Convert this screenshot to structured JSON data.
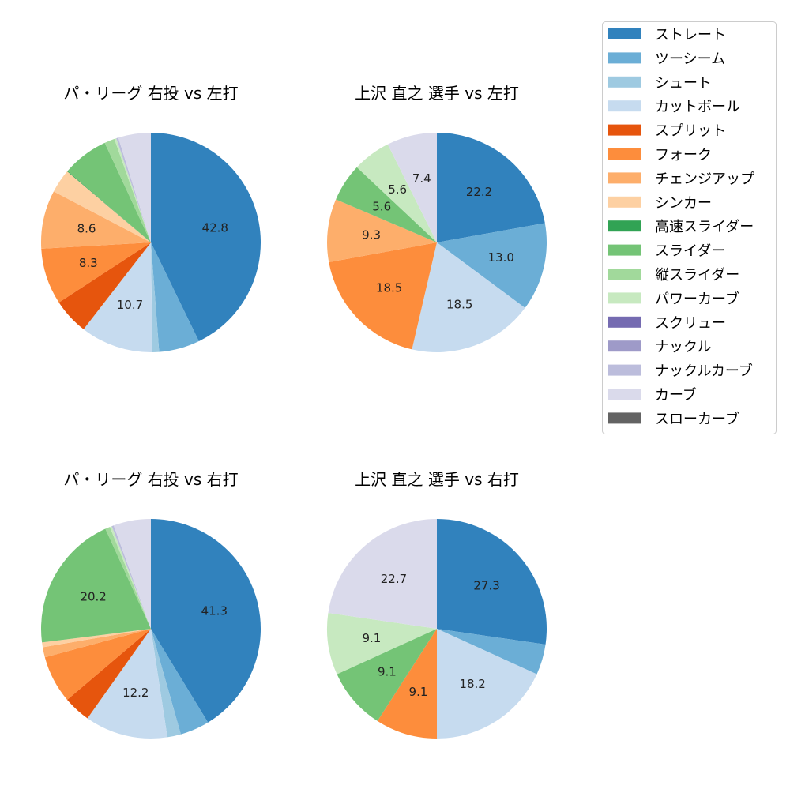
{
  "legend": {
    "placement": "top-right",
    "entries": [
      {
        "name": "ストレート",
        "color": "#3182bd"
      },
      {
        "name": "ツーシーム",
        "color": "#6baed6"
      },
      {
        "name": "シュート",
        "color": "#9ecae1"
      },
      {
        "name": "カットボール",
        "color": "#c6dbef"
      },
      {
        "name": "スプリット",
        "color": "#e6550d"
      },
      {
        "name": "フォーク",
        "color": "#fd8d3c"
      },
      {
        "name": "チェンジアップ",
        "color": "#fdae6b"
      },
      {
        "name": "シンカー",
        "color": "#fdd0a2"
      },
      {
        "name": "高速スライダー",
        "color": "#31a354"
      },
      {
        "name": "スライダー",
        "color": "#74c476"
      },
      {
        "name": "縦スライダー",
        "color": "#a1d99b"
      },
      {
        "name": "パワーカーブ",
        "color": "#c7e9c0"
      },
      {
        "name": "スクリュー",
        "color": "#756bb1"
      },
      {
        "name": "ナックル",
        "color": "#9e9ac8"
      },
      {
        "name": "ナックルカーブ",
        "color": "#bcbddc"
      },
      {
        "name": "カーブ",
        "color": "#dadaeb"
      },
      {
        "name": "スローカーブ",
        "color": "#636363"
      }
    ]
  },
  "chart_data": [
    {
      "type": "pie",
      "title": "パ・リーグ 右投 vs 左打",
      "slices": [
        {
          "name": "ストレート",
          "value": 42.8,
          "label": "42.8"
        },
        {
          "name": "ツーシーム",
          "value": 6.0
        },
        {
          "name": "シュート",
          "value": 1.0
        },
        {
          "name": "カットボール",
          "value": 10.7,
          "label": "10.7"
        },
        {
          "name": "スプリット",
          "value": 5.3
        },
        {
          "name": "フォーク",
          "value": 8.3,
          "label": "8.3"
        },
        {
          "name": "チェンジアップ",
          "value": 8.6,
          "label": "8.6"
        },
        {
          "name": "シンカー",
          "value": 3.5
        },
        {
          "name": "高速スライダー",
          "value": 0.1
        },
        {
          "name": "スライダー",
          "value": 6.8
        },
        {
          "name": "縦スライダー",
          "value": 1.5
        },
        {
          "name": "パワーカーブ",
          "value": 0.3
        },
        {
          "name": "ナックルカーブ",
          "value": 0.3
        },
        {
          "name": "カーブ",
          "value": 4.8
        }
      ]
    },
    {
      "type": "pie",
      "title": "上沢 直之 選手 vs 左打",
      "slices": [
        {
          "name": "ストレート",
          "value": 22.2,
          "label": "22.2"
        },
        {
          "name": "ツーシーム",
          "value": 13.0,
          "label": "13.0"
        },
        {
          "name": "カットボール",
          "value": 18.5,
          "label": "18.5"
        },
        {
          "name": "フォーク",
          "value": 18.5,
          "label": "18.5"
        },
        {
          "name": "チェンジアップ",
          "value": 9.3,
          "label": "9.3"
        },
        {
          "name": "スライダー",
          "value": 5.6,
          "label": "5.6"
        },
        {
          "name": "パワーカーブ",
          "value": 5.6,
          "label": "5.6"
        },
        {
          "name": "カーブ",
          "value": 7.4,
          "label": "7.4"
        }
      ]
    },
    {
      "type": "pie",
      "title": "パ・リーグ 右投 vs 右打",
      "slices": [
        {
          "name": "ストレート",
          "value": 41.3,
          "label": "41.3"
        },
        {
          "name": "ツーシーム",
          "value": 4.3
        },
        {
          "name": "シュート",
          "value": 2.0
        },
        {
          "name": "カットボール",
          "value": 12.2,
          "label": "12.2"
        },
        {
          "name": "スプリット",
          "value": 4.0
        },
        {
          "name": "フォーク",
          "value": 7.0
        },
        {
          "name": "チェンジアップ",
          "value": 1.5
        },
        {
          "name": "シンカー",
          "value": 0.7
        },
        {
          "name": "スライダー",
          "value": 20.2,
          "label": "20.2"
        },
        {
          "name": "縦スライダー",
          "value": 0.7
        },
        {
          "name": "パワーカーブ",
          "value": 0.3
        },
        {
          "name": "ナックルカーブ",
          "value": 0.3
        },
        {
          "name": "カーブ",
          "value": 5.5
        }
      ]
    },
    {
      "type": "pie",
      "title": "上沢 直之 選手 vs 右打",
      "slices": [
        {
          "name": "ストレート",
          "value": 27.3,
          "label": "27.3"
        },
        {
          "name": "ツーシーム",
          "value": 4.5
        },
        {
          "name": "カットボール",
          "value": 18.2,
          "label": "18.2"
        },
        {
          "name": "フォーク",
          "value": 9.1,
          "label": "9.1"
        },
        {
          "name": "スライダー",
          "value": 9.1,
          "label": "9.1"
        },
        {
          "name": "パワーカーブ",
          "value": 9.1,
          "label": "9.1"
        },
        {
          "name": "カーブ",
          "value": 22.7,
          "label": "22.7"
        }
      ]
    }
  ]
}
